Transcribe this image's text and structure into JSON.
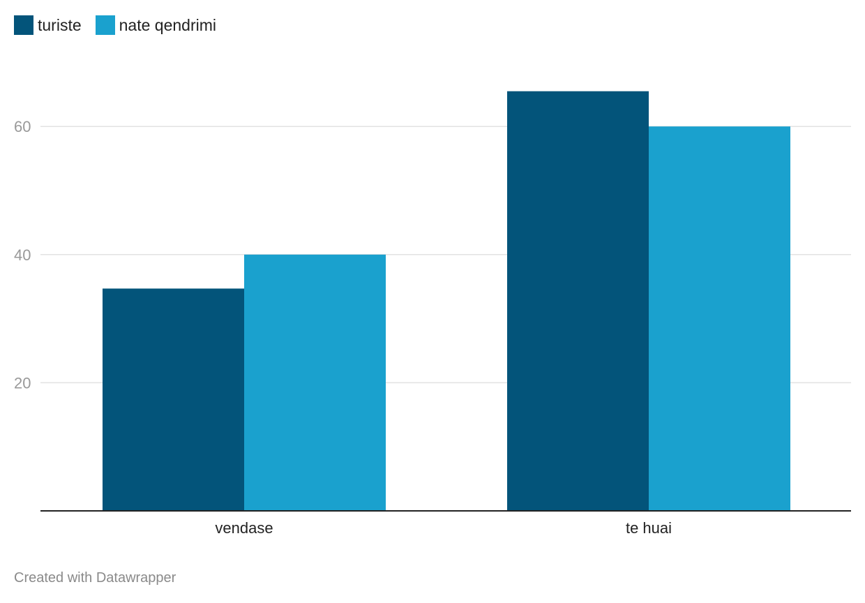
{
  "chart_data": {
    "type": "bar",
    "categories": [
      "vendase",
      "te huai"
    ],
    "series": [
      {
        "name": "turiste",
        "values": [
          34.7,
          65.5
        ],
        "color": "#03547a"
      },
      {
        "name": "nate qendrimi",
        "values": [
          40,
          60
        ],
        "color": "#1aa1ce"
      }
    ],
    "yticks": [
      20,
      40,
      60
    ],
    "ylim": [
      0,
      70
    ],
    "grid": true,
    "legend_position": "top-left"
  },
  "legend": {
    "items": [
      {
        "label": "turiste",
        "color": "#03547a"
      },
      {
        "label": "nate qendrimi",
        "color": "#1aa1ce"
      }
    ]
  },
  "footer": {
    "credit": "Created with Datawrapper"
  }
}
